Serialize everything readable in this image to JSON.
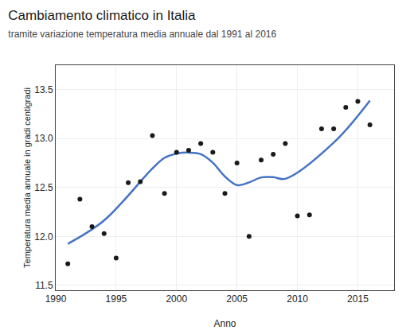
{
  "chart_data": {
    "type": "scatter",
    "title": "Cambiamento climatico in Italia",
    "subtitle": "tramite variazione temperatura media annuale dal 1991 al 2016",
    "xlabel": "Anno",
    "ylabel": "Temperatura media annuale in gradi centigradi",
    "series": [
      {
        "type": "line",
        "color": "#4472c4",
        "line_style": "solid",
        "x": [
          1991,
          1994,
          1998,
          1999,
          2000,
          2001,
          2002,
          2003,
          2004,
          2005,
          2006,
          2007,
          2008,
          2009,
          2013,
          2016
        ],
        "values": [
          11.925,
          12.163,
          12.694,
          12.803,
          12.846,
          12.857,
          12.841,
          12.753,
          12.612,
          12.525,
          12.552,
          12.603,
          12.606,
          12.589,
          12.958,
          13.389
        ]
      },
      {
        "type": "scatter",
        "color": "#1a1a1a",
        "marker": "circle",
        "x": [
          1991,
          1992,
          1993,
          1994,
          1995,
          1996,
          1997,
          1998,
          1999,
          2000,
          2001,
          2002,
          2003,
          2004,
          2005,
          2006,
          2007,
          2008,
          2009,
          2010,
          2011,
          2012,
          2013,
          2014,
          2015,
          2016
        ],
        "values": [
          11.72,
          12.38,
          12.1,
          12.03,
          11.78,
          12.55,
          12.56,
          13.03,
          12.44,
          12.86,
          12.88,
          12.95,
          12.86,
          12.44,
          12.75,
          12.0,
          12.78,
          12.84,
          12.95,
          12.21,
          12.22,
          13.1,
          13.1,
          13.32,
          13.38,
          13.14
        ]
      }
    ],
    "xlim": [
      1990,
      2018
    ],
    "ylim": [
      11.45,
      13.75
    ],
    "xticks": [
      1990,
      1995,
      2000,
      2005,
      2010,
      2015
    ],
    "yticks": [
      11.5,
      {
        "value": 12.0,
        "label": "12.0"
      },
      12.5,
      {
        "value": 13.0,
        "label": "13.0"
      },
      13.5
    ],
    "grid": true
  }
}
